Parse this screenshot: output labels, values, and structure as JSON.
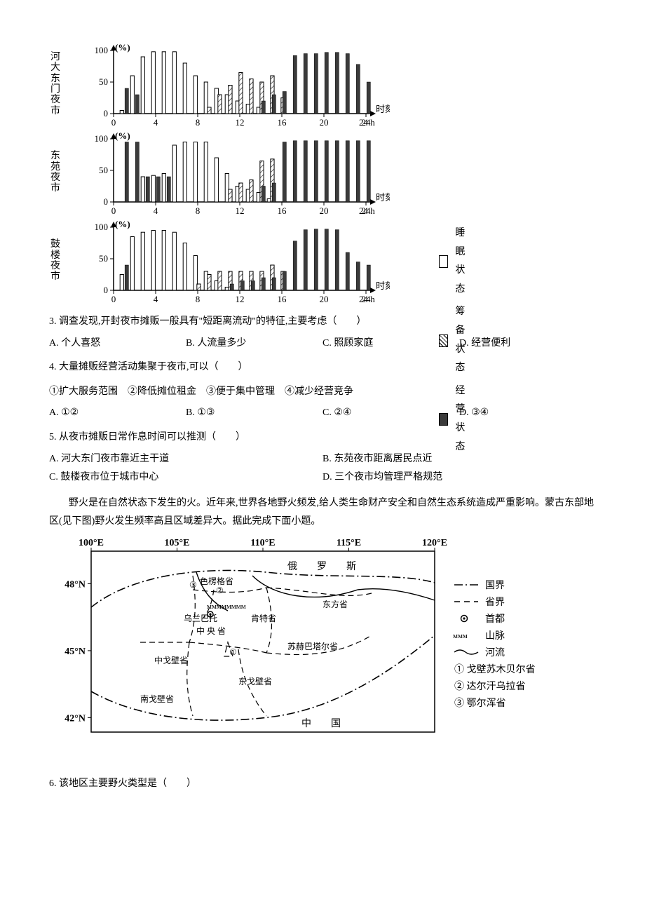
{
  "charts": {
    "ylabel": "(%)",
    "xlabel": "时刻",
    "xunit": "24 h",
    "ymax": 100,
    "ymin": 0,
    "yticks": [
      0,
      50,
      100
    ],
    "xticks": [
      0,
      4,
      8,
      12,
      16,
      20,
      24
    ],
    "fill_open": "#ffffff",
    "fill_solid": "#3b3b3b",
    "stroke": "#000000",
    "bar_w": 5.8,
    "font_axis": 13,
    "rows": [
      {
        "title": "河大东门夜市",
        "bars": [
          {
            "h": 1,
            "o": 5,
            "s": 40,
            "p": 0
          },
          {
            "h": 2,
            "o": 60,
            "s": 30,
            "p": 0
          },
          {
            "h": 3,
            "o": 90,
            "s": 0,
            "p": 0
          },
          {
            "h": 4,
            "o": 98,
            "s": 0,
            "p": 0
          },
          {
            "h": 5,
            "o": 98,
            "s": 0,
            "p": 0
          },
          {
            "h": 6,
            "o": 98,
            "s": 0,
            "p": 0
          },
          {
            "h": 7,
            "o": 80,
            "s": 0,
            "p": 0
          },
          {
            "h": 8,
            "o": 60,
            "s": 0,
            "p": 0
          },
          {
            "h": 9,
            "o": 50,
            "s": 0,
            "p": 10
          },
          {
            "h": 10,
            "o": 40,
            "s": 0,
            "p": 30
          },
          {
            "h": 11,
            "o": 30,
            "s": 0,
            "p": 45
          },
          {
            "h": 12,
            "o": 20,
            "s": 0,
            "p": 65
          },
          {
            "h": 13,
            "o": 15,
            "s": 0,
            "p": 55
          },
          {
            "h": 14,
            "o": 10,
            "s": 20,
            "p": 50
          },
          {
            "h": 15,
            "o": 0,
            "s": 30,
            "p": 60
          },
          {
            "h": 16,
            "o": 0,
            "s": 35,
            "p": 25
          },
          {
            "h": 17,
            "o": 0,
            "s": 92,
            "p": 0
          },
          {
            "h": 18,
            "o": 0,
            "s": 95,
            "p": 0
          },
          {
            "h": 19,
            "o": 0,
            "s": 95,
            "p": 0
          },
          {
            "h": 20,
            "o": 0,
            "s": 97,
            "p": 0
          },
          {
            "h": 21,
            "o": 0,
            "s": 97,
            "p": 0
          },
          {
            "h": 22,
            "o": 0,
            "s": 95,
            "p": 0
          },
          {
            "h": 23,
            "o": 0,
            "s": 78,
            "p": 0
          },
          {
            "h": 24,
            "o": 0,
            "s": 50,
            "p": 0
          }
        ]
      },
      {
        "title": "东苑夜市",
        "bars": [
          {
            "h": 1,
            "o": 0,
            "s": 95,
            "p": 0
          },
          {
            "h": 2,
            "o": 0,
            "s": 95,
            "p": 0
          },
          {
            "h": 3,
            "o": 40,
            "s": 40,
            "p": 0
          },
          {
            "h": 4,
            "o": 42,
            "s": 40,
            "p": 0
          },
          {
            "h": 5,
            "o": 45,
            "s": 40,
            "p": 0
          },
          {
            "h": 6,
            "o": 90,
            "s": 0,
            "p": 0
          },
          {
            "h": 7,
            "o": 95,
            "s": 0,
            "p": 0
          },
          {
            "h": 8,
            "o": 95,
            "s": 0,
            "p": 0
          },
          {
            "h": 9,
            "o": 95,
            "s": 0,
            "p": 0
          },
          {
            "h": 10,
            "o": 70,
            "s": 0,
            "p": 0
          },
          {
            "h": 11,
            "o": 45,
            "s": 0,
            "p": 20
          },
          {
            "h": 12,
            "o": 25,
            "s": 0,
            "p": 30
          },
          {
            "h": 13,
            "o": 20,
            "s": 0,
            "p": 35
          },
          {
            "h": 14,
            "o": 15,
            "s": 25,
            "p": 65
          },
          {
            "h": 15,
            "o": 5,
            "s": 30,
            "p": 68
          },
          {
            "h": 16,
            "o": 0,
            "s": 95,
            "p": 0
          },
          {
            "h": 17,
            "o": 0,
            "s": 97,
            "p": 0
          },
          {
            "h": 18,
            "o": 0,
            "s": 97,
            "p": 0
          },
          {
            "h": 19,
            "o": 0,
            "s": 97,
            "p": 0
          },
          {
            "h": 20,
            "o": 0,
            "s": 97,
            "p": 0
          },
          {
            "h": 21,
            "o": 0,
            "s": 97,
            "p": 0
          },
          {
            "h": 22,
            "o": 0,
            "s": 97,
            "p": 0
          },
          {
            "h": 23,
            "o": 0,
            "s": 97,
            "p": 0
          },
          {
            "h": 24,
            "o": 0,
            "s": 97,
            "p": 0
          }
        ]
      },
      {
        "title": "鼓楼夜市",
        "bars": [
          {
            "h": 1,
            "o": 25,
            "s": 40,
            "p": 0
          },
          {
            "h": 2,
            "o": 85,
            "s": 0,
            "p": 0
          },
          {
            "h": 3,
            "o": 92,
            "s": 0,
            "p": 0
          },
          {
            "h": 4,
            "o": 95,
            "s": 0,
            "p": 0
          },
          {
            "h": 5,
            "o": 95,
            "s": 0,
            "p": 0
          },
          {
            "h": 6,
            "o": 92,
            "s": 0,
            "p": 0
          },
          {
            "h": 7,
            "o": 75,
            "s": 0,
            "p": 0
          },
          {
            "h": 8,
            "o": 55,
            "s": 0,
            "p": 10
          },
          {
            "h": 9,
            "o": 30,
            "s": 0,
            "p": 25
          },
          {
            "h": 10,
            "o": 15,
            "s": 0,
            "p": 30
          },
          {
            "h": 11,
            "o": 5,
            "s": 10,
            "p": 30
          },
          {
            "h": 12,
            "o": 0,
            "s": 15,
            "p": 30
          },
          {
            "h": 13,
            "o": 0,
            "s": 15,
            "p": 30
          },
          {
            "h": 14,
            "o": 0,
            "s": 20,
            "p": 30
          },
          {
            "h": 15,
            "o": 0,
            "s": 20,
            "p": 40
          },
          {
            "h": 16,
            "o": 0,
            "s": 30,
            "p": 30
          },
          {
            "h": 17,
            "o": 0,
            "s": 78,
            "p": 0
          },
          {
            "h": 18,
            "o": 0,
            "s": 96,
            "p": 0
          },
          {
            "h": 19,
            "o": 0,
            "s": 97,
            "p": 0
          },
          {
            "h": 20,
            "o": 0,
            "s": 97,
            "p": 0
          },
          {
            "h": 21,
            "o": 0,
            "s": 96,
            "p": 0
          },
          {
            "h": 22,
            "o": 0,
            "s": 60,
            "p": 0
          },
          {
            "h": 23,
            "o": 0,
            "s": 45,
            "p": 0
          },
          {
            "h": 24,
            "o": 0,
            "s": 40,
            "p": 0
          }
        ]
      }
    ],
    "legend": {
      "sleep": "睡眠状态",
      "prepare": "筹备状态",
      "operate": "经营状态"
    }
  },
  "q3": {
    "text": "3.  调查发现,开封夜市摊贩一般具有\"短距离流动\"的特征,主要考虑（　　）",
    "A": "A.  个人喜怒",
    "B": "B.  人流量多少",
    "C": "C.  照顾家庭",
    "D": "D.  经营便利"
  },
  "q4": {
    "text": "4.  大量摊贩经营活动集聚于夜市,可以（　　）",
    "stems": "①扩大服务范围　②降低摊位租金　③便于集中管理　④减少经营竞争",
    "A": "A.  ①②",
    "B": "B.  ①③",
    "C": "C.  ②④",
    "D": "D.  ③④"
  },
  "q5": {
    "text": "5.  从夜市摊贩日常作息时间可以推测（　　）",
    "A": "A.  河大东门夜市靠近主干道",
    "B": "B.  东苑夜市距离居民点近",
    "C": "C.  鼓楼夜市位于城市中心",
    "D": "D.  三个夜市均管理严格规范"
  },
  "passage": "野火是在自然状态下发生的火。近年来,世界各地野火频发,给人类生命财产安全和自然生态系统造成严重影响。蒙古东部地区(见下图)野火发生频率高且区域差异大。据此完成下面小题。",
  "map": {
    "lons": [
      "100°E",
      "105°E",
      "110°E",
      "115°E",
      "120°E"
    ],
    "lats": [
      "48°N",
      "45°N",
      "42°N"
    ],
    "labels": {
      "ru": "俄　　罗　　斯",
      "cn": "中　　国",
      "capital": "乌兰巴托",
      "p_selenge": "色楞格省",
      "p_central": "中 央 省",
      "p_kent": "肯特省",
      "p_east": "东方省",
      "p_sukh": "苏赫巴塔尔省",
      "p_midgobi": "中戈壁省",
      "p_eastgobi": "东戈壁省",
      "p_southgobi": "南戈壁省",
      "num1": "①",
      "num2": "②",
      "num3": "③"
    },
    "legend": {
      "l1a": "国界",
      "l1s": "—·—",
      "l2a": "省界",
      "l2s": "— —",
      "l3a": "首都",
      "l3s": "⦿",
      "l4a": "山脉",
      "l4s": "ᴍᴍᴍ",
      "l5a": "河流",
      "l5s": "〜",
      "n1": "① 戈壁苏木贝尔省",
      "n2": "② 达尔汗乌拉省",
      "n3": "③ 鄂尔浑省"
    }
  },
  "q6": "6.  该地区主要野火类型是（　　）"
}
